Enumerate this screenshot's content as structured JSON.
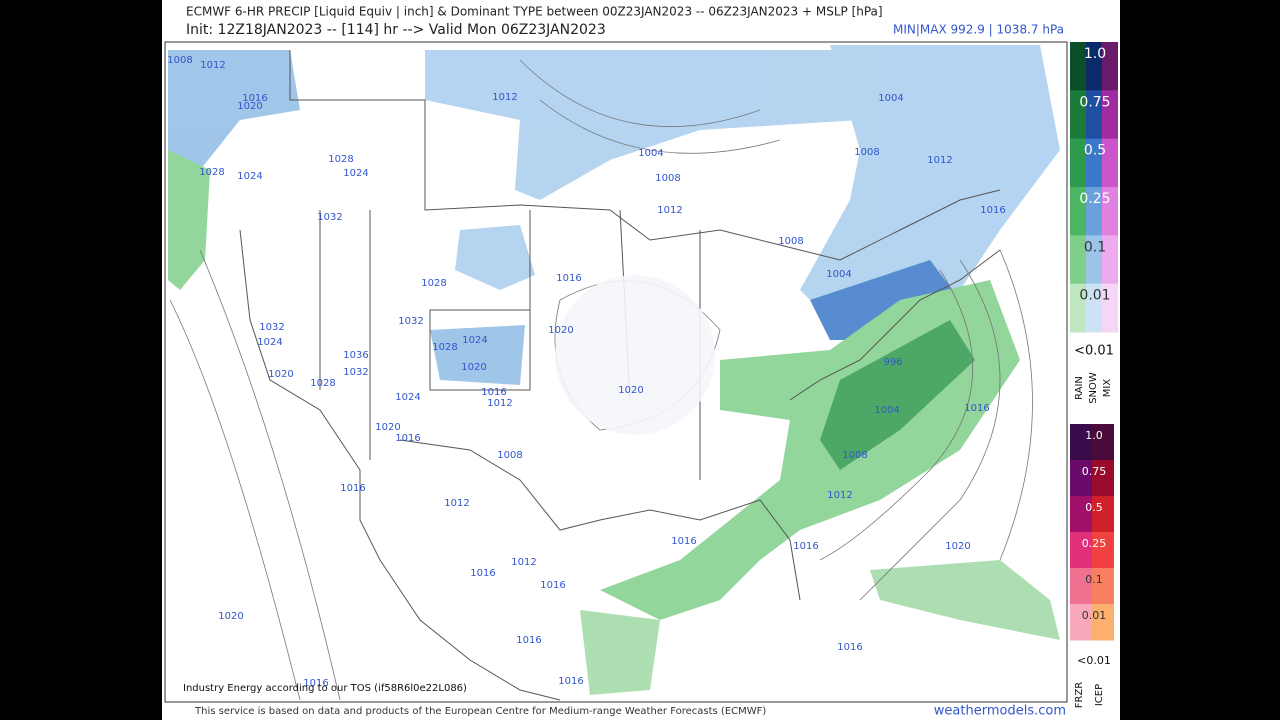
{
  "header": {
    "title": "ECMWF 6-HR PRECIP [Liquid Equiv | inch] & Dominant TYPE between 00Z23JAN2023 -- 06Z23JAN2023 + MSLP [hPa]",
    "subtitle": "Init: 12Z18JAN2023 -- [114] hr --> Valid Mon 06Z23JAN2023",
    "minmax": "MIN|MAX 992.9 | 1038.7 hPa"
  },
  "legend": {
    "rain_snow_mix": {
      "levels": [
        "1.0",
        "0.75",
        "0.5",
        "0.25",
        "0.1",
        "0.01"
      ],
      "none": "<0.01",
      "types": [
        "RAIN",
        "SNOW",
        "MIX"
      ]
    },
    "frzr_icep": {
      "levels": [
        "1.0",
        "0.75",
        "0.5",
        "0.25",
        "0.1",
        "0.01"
      ],
      "none": "<0.01",
      "types": [
        "FRZR",
        "ICEP"
      ]
    }
  },
  "map": {
    "isobar_labels": [
      1008,
      1012,
      1016,
      1020,
      1028,
      1024,
      1028,
      1024,
      1032,
      1028,
      1032,
      1024,
      1036,
      1032,
      1020,
      1028,
      1032,
      1028,
      1024,
      1020,
      1024,
      1016,
      1012,
      1020,
      1016,
      1008,
      1016,
      1012,
      1016,
      1016,
      1012,
      1016,
      1020,
      1016,
      1016,
      1016,
      1012,
      1004,
      1008,
      1012,
      1016,
      1020,
      1020,
      1008,
      1004,
      1004,
      1008,
      1012,
      1016,
      996,
      1004,
      1016,
      1008,
      1012,
      1016,
      1020,
      1016
    ]
  },
  "footer": {
    "tos": "Industry Energy according to our TOS (if58R6l0e22L086)",
    "source": "This service is based on data and products of the European Centre for Medium-range Weather Forecasts (ECMWF)",
    "site": "weathermodels.com"
  }
}
